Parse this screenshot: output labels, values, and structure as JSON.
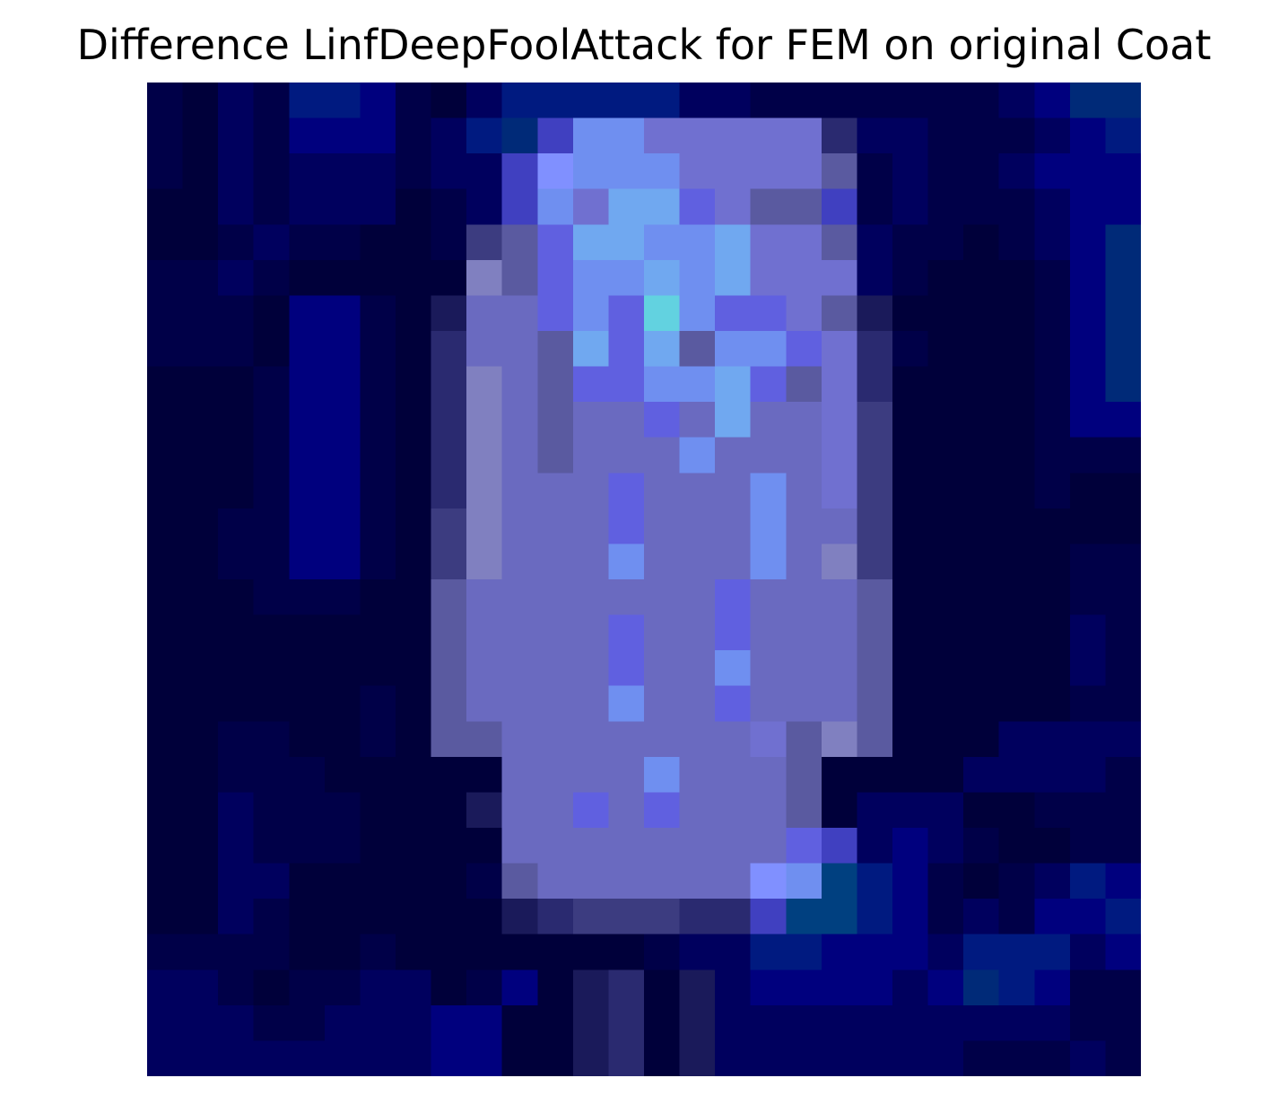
{
  "figure": {
    "title": "Difference LinfDeepFoolAttack for FEM on original Coat"
  },
  "image": {
    "subject": "coat",
    "colors": {
      "background": "#000040",
      "background_variant": "#00007a",
      "coat_body": "#6c6cc0",
      "coat_highlight": "#62d2e0",
      "coat_bright": "#6f8ff0"
    }
  }
}
